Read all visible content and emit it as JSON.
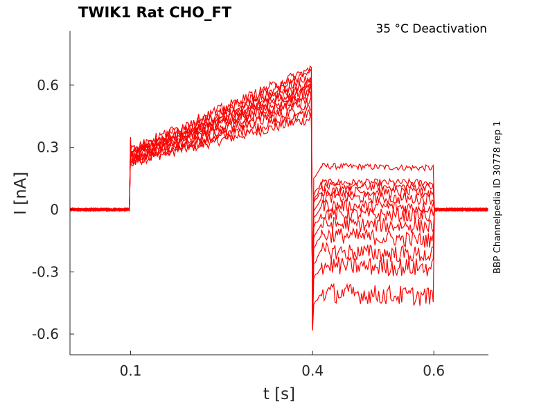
{
  "chart_data": {
    "type": "line",
    "title": "TWIK1  Rat  CHO_FT",
    "subtitle": "35 °C  Deactivation",
    "side_label": "BBP Channelpedia ID 30778 rep 1",
    "xlabel": "t [s]",
    "ylabel": "I [nA]",
    "xlim": [
      0.0,
      0.69
    ],
    "ylim": [
      -0.7,
      0.86
    ],
    "x_ticks": [
      {
        "value": 0.1,
        "label": "0.1"
      },
      {
        "value": 0.4,
        "label": "0.4"
      },
      {
        "value": 0.6,
        "label": "0.6"
      }
    ],
    "y_ticks": [
      {
        "value": 0.6,
        "label": "0.6"
      },
      {
        "value": 0.3,
        "label": "0.3"
      },
      {
        "value": 0,
        "label": "0"
      },
      {
        "value": -0.3,
        "label": "-0.3"
      },
      {
        "value": -0.6,
        "label": "-0.6"
      }
    ],
    "trace_color": "#ff0000",
    "time_points": [
      0.0,
      0.099,
      0.1,
      0.399,
      0.4,
      0.6,
      0.601,
      0.69
    ],
    "series": [
      {
        "values": [
          0.0,
          0.0,
          0.23,
          0.44,
          0.21,
          0.2,
          0.0,
          0.0
        ]
      },
      {
        "values": [
          0.0,
          0.0,
          0.23,
          0.47,
          0.13,
          0.13,
          0.0,
          0.0
        ]
      },
      {
        "values": [
          0.0,
          0.0,
          0.24,
          0.5,
          0.11,
          0.11,
          0.0,
          0.0
        ]
      },
      {
        "values": [
          0.0,
          0.0,
          0.24,
          0.53,
          0.09,
          0.08,
          0.0,
          0.0
        ]
      },
      {
        "values": [
          0.0,
          0.0,
          0.25,
          0.55,
          0.06,
          0.05,
          0.0,
          0.0
        ]
      },
      {
        "values": [
          0.0,
          0.0,
          0.25,
          0.57,
          0.02,
          0.01,
          0.0,
          0.0
        ]
      },
      {
        "values": [
          0.0,
          0.0,
          0.26,
          0.59,
          -0.02,
          -0.03,
          0.0,
          0.0
        ]
      },
      {
        "values": [
          0.0,
          0.0,
          0.26,
          0.6,
          -0.07,
          -0.08,
          0.0,
          0.0
        ]
      },
      {
        "values": [
          0.0,
          0.0,
          0.27,
          0.62,
          -0.12,
          -0.15,
          0.0,
          0.0
        ]
      },
      {
        "values": [
          0.0,
          0.0,
          0.27,
          0.64,
          -0.2,
          -0.22,
          0.0,
          0.0
        ]
      },
      {
        "values": [
          0.0,
          0.0,
          0.28,
          0.66,
          -0.27,
          -0.28,
          0.0,
          0.0
        ]
      },
      {
        "values": [
          0.0,
          0.0,
          0.29,
          0.68,
          -0.4,
          -0.42,
          0.0,
          0.0
        ]
      }
    ]
  }
}
